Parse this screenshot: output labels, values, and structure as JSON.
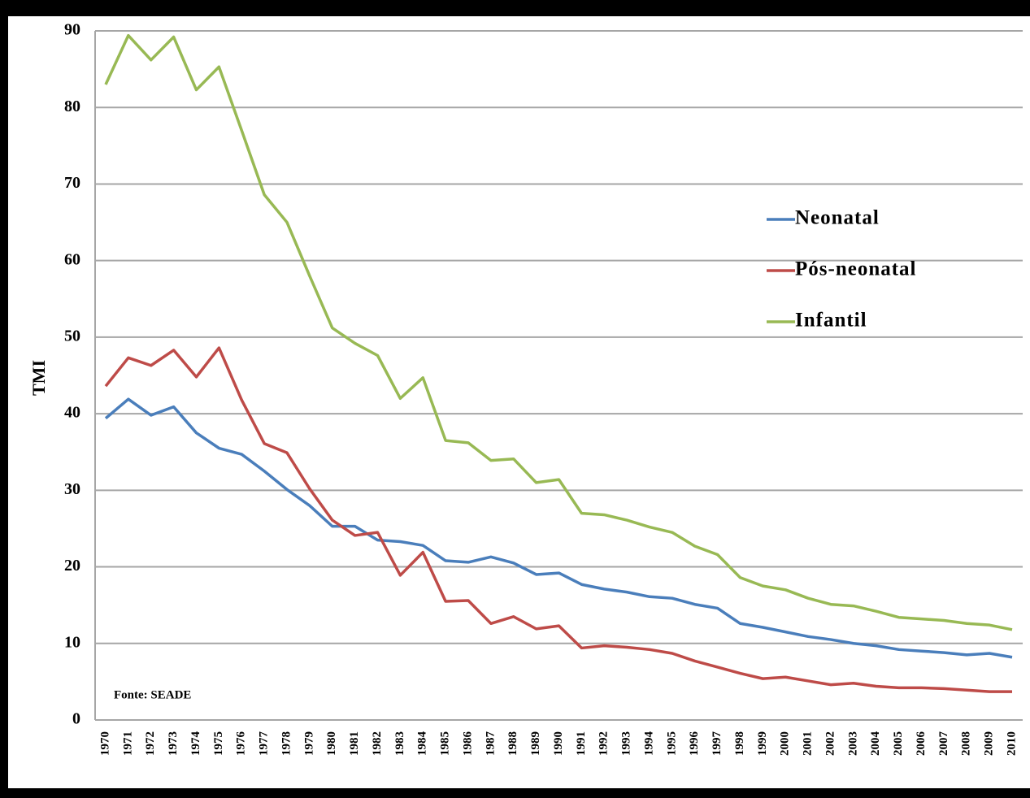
{
  "chart_data": {
    "type": "line",
    "y_label": "TMI",
    "annotation": "Fonte: SEADE",
    "categories": [
      "1970",
      "1971",
      "1972",
      "1973",
      "1974",
      "1975",
      "1976",
      "1977",
      "1978",
      "1979",
      "1980",
      "1981",
      "1982",
      "1983",
      "1984",
      "1985",
      "1986",
      "1987",
      "1988",
      "1989",
      "1990",
      "1991",
      "1992",
      "1993",
      "1994",
      "1995",
      "1996",
      "1997",
      "1998",
      "1999",
      "2000",
      "2001",
      "2002",
      "2003",
      "2004",
      "2005",
      "2006",
      "2007",
      "2008",
      "2009",
      "2010"
    ],
    "series": [
      {
        "name": "Neonatal",
        "color": "#4a7ebb",
        "values": [
          39.4,
          41.9,
          39.8,
          40.9,
          37.5,
          35.5,
          34.7,
          32.5,
          30.1,
          28,
          25.3,
          25.3,
          23.5,
          23.3,
          22.8,
          20.8,
          20.6,
          21.3,
          20.5,
          19,
          19.2,
          17.7,
          17.1,
          16.7,
          16.1,
          15.9,
          15.1,
          14.6,
          12.6,
          12.1,
          11.5,
          10.9,
          10.5,
          10,
          9.7,
          9.2,
          9,
          8.8,
          8.5,
          8.7,
          8.2
        ]
      },
      {
        "name": "Pós-neonatal",
        "color": "#be4b48",
        "values": [
          43.6,
          47.3,
          46.3,
          48.3,
          44.8,
          48.6,
          41.8,
          36.1,
          34.9,
          30.2,
          26.1,
          24.1,
          24.5,
          18.9,
          21.9,
          15.5,
          15.6,
          12.6,
          13.5,
          11.9,
          12.3,
          9.4,
          9.7,
          9.5,
          9.2,
          8.7,
          7.7,
          6.9,
          6.1,
          5.4,
          5.6,
          5.1,
          4.6,
          4.8,
          4.4,
          4.2,
          4.2,
          4.1,
          3.9,
          3.7,
          3.7
        ]
      },
      {
        "name": "Infantil",
        "color": "#98b954",
        "values": [
          83,
          89.4,
          86.2,
          89.2,
          82.3,
          85.3,
          77,
          68.6,
          65,
          58,
          51.2,
          49.2,
          47.6,
          42,
          44.7,
          36.5,
          36.2,
          33.9,
          34.1,
          31,
          31.4,
          27,
          26.8,
          26.1,
          25.2,
          24.5,
          22.7,
          21.6,
          18.6,
          17.5,
          17,
          15.9,
          15.1,
          14.9,
          14.2,
          13.4,
          13.2,
          13,
          12.6,
          12.4,
          11.8
        ]
      }
    ],
    "ylim": [
      0,
      90
    ],
    "yticks": [
      0,
      10,
      20,
      30,
      40,
      50,
      60,
      70,
      80,
      90
    ],
    "grid": true,
    "legend": "right"
  }
}
